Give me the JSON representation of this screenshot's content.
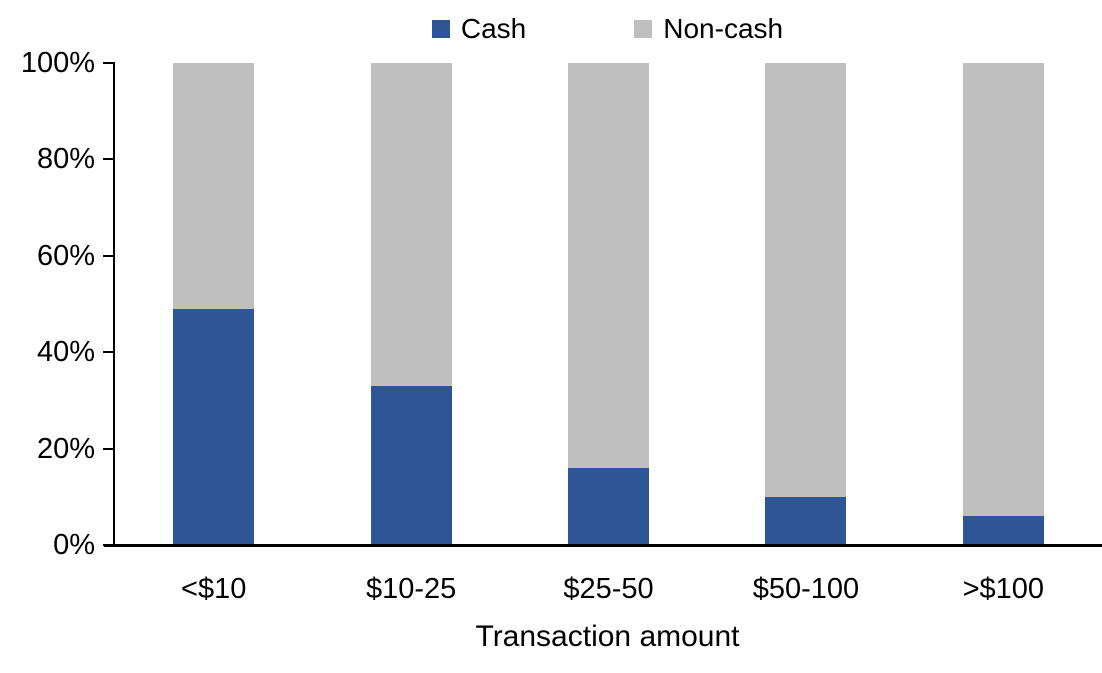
{
  "chart_data": {
    "type": "bar",
    "stacked": true,
    "title": "",
    "xlabel": "Transaction amount",
    "ylabel": "",
    "categories": [
      "<$10",
      "$10-25",
      "$25-50",
      "$50-100",
      ">$100"
    ],
    "series": [
      {
        "name": "Cash",
        "color": "#2E5596",
        "values": [
          49,
          33,
          16,
          10,
          6
        ]
      },
      {
        "name": "Non-cash",
        "color": "#BFBFBF",
        "values": [
          51,
          67,
          84,
          90,
          94
        ]
      }
    ],
    "ylim": [
      0,
      100
    ],
    "yticks": [
      "0%",
      "20%",
      "40%",
      "60%",
      "80%",
      "100%"
    ],
    "grid": false,
    "legend_position": "top-center",
    "axis_color": "#000000",
    "background_color": "#FFFFFF"
  }
}
